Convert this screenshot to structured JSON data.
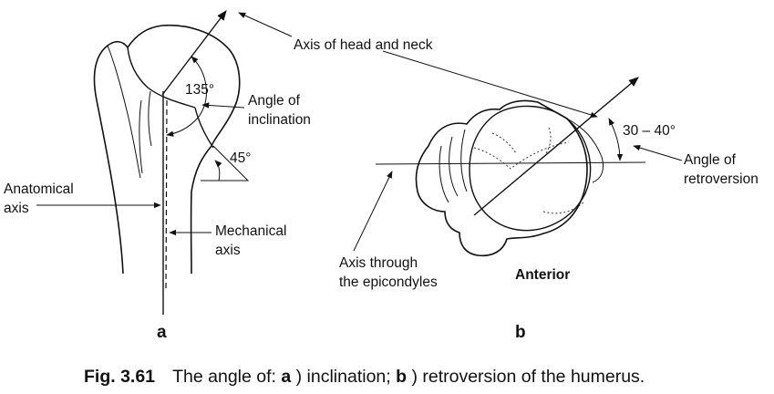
{
  "labels": {
    "axis_head_neck": "Axis of head and neck",
    "angle_135": "135°",
    "angle_of": "Angle of",
    "inclination": "inclination",
    "angle_45": "45°",
    "anatomical": "Anatomical",
    "axis": "axis",
    "mechanical": "Mechanical",
    "mech_axis": "axis",
    "range_30_40": "30 – 40°",
    "retro_angle_of": "Angle of",
    "retroversion": "retroversion",
    "axis_through": "Axis through",
    "the_epicondyles": "the epicondyles",
    "anterior": "Anterior"
  },
  "panels": {
    "a": "a",
    "b": "b"
  },
  "caption": {
    "fig": "Fig. 3.61",
    "text1": "The angle of: ",
    "a": "a",
    "text2": ") inclination; ",
    "b": "b",
    "text3": ") retroversion of the humerus."
  }
}
